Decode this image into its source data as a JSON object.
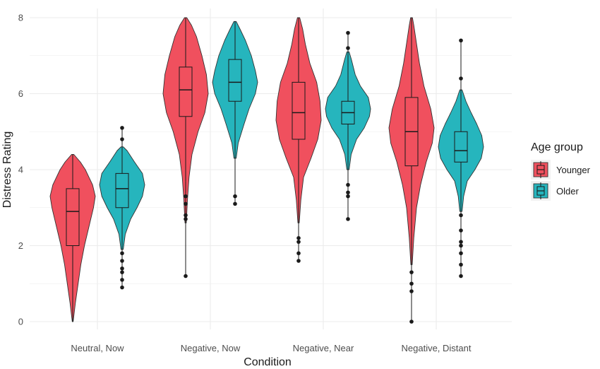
{
  "chart_data": {
    "type": "violin",
    "title": "",
    "xlabel": "Condition",
    "ylabel": "Distress Rating",
    "ylim": [
      0,
      8
    ],
    "yticks": [
      "0",
      "2",
      "4",
      "6",
      "8"
    ],
    "categories": [
      "Neutral, Now",
      "Negative, Now",
      "Negative, Near",
      "Negative, Distant"
    ],
    "grid": true,
    "legend": {
      "title": "Age group",
      "position": "right"
    },
    "series": [
      {
        "name": "Younger",
        "color": "#F0505E",
        "groups": [
          {
            "min": 0.0,
            "max": 4.4,
            "q1": 2.0,
            "median": 2.9,
            "q3": 3.5,
            "whisker_low": 0.0,
            "whisker_high": 4.4,
            "outliers": [],
            "density": [
              [
                0.0,
                0.02
              ],
              [
                0.5,
                0.12
              ],
              [
                1.0,
                0.24
              ],
              [
                1.5,
                0.36
              ],
              [
                2.0,
                0.52
              ],
              [
                2.5,
                0.72
              ],
              [
                3.0,
                0.92
              ],
              [
                3.3,
                1.0
              ],
              [
                3.6,
                0.88
              ],
              [
                4.0,
                0.56
              ],
              [
                4.2,
                0.34
              ],
              [
                4.4,
                0.05
              ]
            ]
          },
          {
            "min": 1.2,
            "max": 8.0,
            "q1": 5.4,
            "median": 6.1,
            "q3": 6.7,
            "whisker_low": 3.7,
            "whisker_high": 8.0,
            "outliers": [
              1.2,
              2.7,
              2.8,
              3.1,
              3.3
            ],
            "density": [
              [
                2.6,
                0.03
              ],
              [
                3.2,
                0.08
              ],
              [
                3.8,
                0.15
              ],
              [
                4.4,
                0.28
              ],
              [
                5.0,
                0.55
              ],
              [
                5.5,
                0.85
              ],
              [
                6.0,
                1.0
              ],
              [
                6.5,
                0.92
              ],
              [
                7.0,
                0.72
              ],
              [
                7.5,
                0.48
              ],
              [
                7.8,
                0.26
              ],
              [
                8.0,
                0.05
              ]
            ]
          },
          {
            "min": 1.6,
            "max": 8.0,
            "q1": 4.8,
            "median": 5.5,
            "q3": 6.3,
            "whisker_low": 2.8,
            "whisker_high": 8.0,
            "outliers": [
              1.6,
              1.8,
              2.1,
              2.2
            ],
            "density": [
              [
                2.6,
                0.03
              ],
              [
                3.2,
                0.1
              ],
              [
                3.8,
                0.22
              ],
              [
                4.3,
                0.55
              ],
              [
                4.8,
                0.85
              ],
              [
                5.3,
                1.0
              ],
              [
                5.8,
                0.95
              ],
              [
                6.3,
                0.8
              ],
              [
                6.8,
                0.5
              ],
              [
                7.3,
                0.3
              ],
              [
                7.7,
                0.18
              ],
              [
                8.0,
                0.05
              ]
            ]
          },
          {
            "min": 0.0,
            "max": 8.0,
            "q1": 4.1,
            "median": 5.0,
            "q3": 5.9,
            "whisker_low": 1.7,
            "whisker_high": 8.0,
            "outliers": [
              0.0,
              0.8,
              1.0,
              1.3
            ],
            "density": [
              [
                1.5,
                0.03
              ],
              [
                2.2,
                0.1
              ],
              [
                3.0,
                0.22
              ],
              [
                3.6,
                0.4
              ],
              [
                4.2,
                0.65
              ],
              [
                4.7,
                0.92
              ],
              [
                5.1,
                1.0
              ],
              [
                5.6,
                0.85
              ],
              [
                6.2,
                0.55
              ],
              [
                6.8,
                0.35
              ],
              [
                7.4,
                0.2
              ],
              [
                7.8,
                0.1
              ],
              [
                8.0,
                0.04
              ]
            ]
          }
        ]
      },
      {
        "name": "Older",
        "color": "#26B5BD",
        "groups": [
          {
            "min": 0.9,
            "max": 5.1,
            "q1": 3.0,
            "median": 3.5,
            "q3": 3.9,
            "whisker_low": 1.9,
            "whisker_high": 4.6,
            "outliers": [
              0.9,
              1.1,
              1.3,
              1.4,
              1.6,
              1.8,
              4.8,
              5.1
            ],
            "density": [
              [
                1.9,
                0.05
              ],
              [
                2.3,
                0.14
              ],
              [
                2.7,
                0.38
              ],
              [
                3.0,
                0.66
              ],
              [
                3.3,
                0.9
              ],
              [
                3.6,
                1.0
              ],
              [
                3.9,
                0.9
              ],
              [
                4.2,
                0.55
              ],
              [
                4.5,
                0.22
              ],
              [
                4.6,
                0.05
              ]
            ]
          },
          {
            "min": 3.1,
            "max": 7.9,
            "q1": 5.8,
            "median": 6.3,
            "q3": 6.9,
            "whisker_low": 4.3,
            "whisker_high": 7.9,
            "outliers": [
              3.1,
              3.3
            ],
            "density": [
              [
                4.3,
                0.05
              ],
              [
                4.7,
                0.14
              ],
              [
                5.2,
                0.4
              ],
              [
                5.6,
                0.62
              ],
              [
                6.0,
                0.9
              ],
              [
                6.3,
                1.0
              ],
              [
                6.6,
                0.9
              ],
              [
                7.0,
                0.72
              ],
              [
                7.4,
                0.46
              ],
              [
                7.7,
                0.22
              ],
              [
                7.9,
                0.05
              ]
            ]
          },
          {
            "min": 2.7,
            "max": 7.6,
            "q1": 5.2,
            "median": 5.5,
            "q3": 5.8,
            "whisker_low": 4.0,
            "whisker_high": 7.1,
            "outliers": [
              2.7,
              3.3,
              3.4,
              3.6,
              7.2,
              7.6
            ],
            "density": [
              [
                4.0,
                0.05
              ],
              [
                4.4,
                0.14
              ],
              [
                4.8,
                0.38
              ],
              [
                5.1,
                0.72
              ],
              [
                5.4,
                0.95
              ],
              [
                5.6,
                1.0
              ],
              [
                5.9,
                0.9
              ],
              [
                6.2,
                0.55
              ],
              [
                6.5,
                0.32
              ],
              [
                6.9,
                0.15
              ],
              [
                7.1,
                0.05
              ]
            ]
          },
          {
            "min": 1.2,
            "max": 7.4,
            "q1": 4.2,
            "median": 4.5,
            "q3": 5.0,
            "whisker_low": 2.9,
            "whisker_high": 6.1,
            "outliers": [
              1.2,
              1.5,
              1.8,
              2.0,
              2.1,
              2.4,
              2.8,
              6.4,
              7.4
            ],
            "density": [
              [
                2.9,
                0.05
              ],
              [
                3.3,
                0.12
              ],
              [
                3.7,
                0.28
              ],
              [
                4.0,
                0.62
              ],
              [
                4.3,
                0.9
              ],
              [
                4.6,
                1.0
              ],
              [
                4.9,
                0.92
              ],
              [
                5.2,
                0.7
              ],
              [
                5.5,
                0.45
              ],
              [
                5.8,
                0.22
              ],
              [
                6.1,
                0.05
              ]
            ]
          }
        ]
      }
    ]
  }
}
